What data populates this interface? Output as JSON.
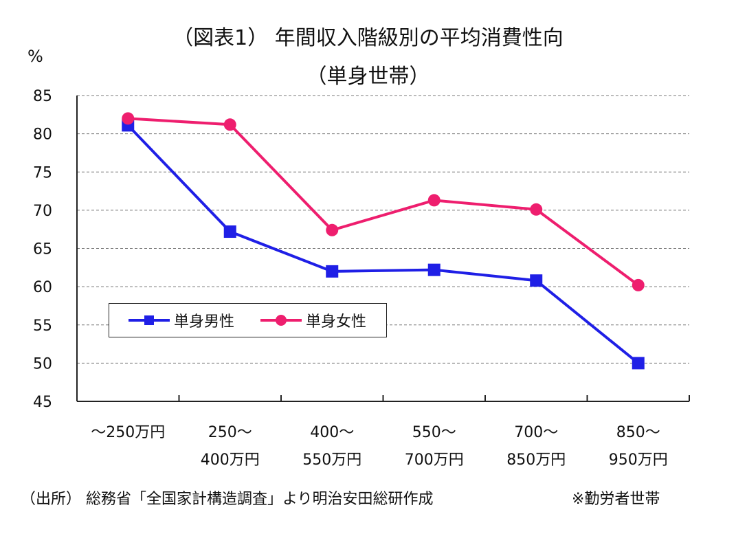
{
  "title": {
    "line1": "（図表1） 年間収入階級別の平均消費性向",
    "line2": "（単身世帯）"
  },
  "unit_label": "%",
  "footer": {
    "source": "（出所） 総務省「全国家計構造調査」より明治安田総研作成",
    "note": "※勤労者世帯"
  },
  "colors": {
    "male": "#1f1fe6",
    "female": "#ee1e6e",
    "axis": "#222222",
    "grid": "#777777"
  },
  "chart_data": {
    "type": "line",
    "title": "（図表1） 年間収入階級別の平均消費性向（単身世帯）",
    "ylabel": "%",
    "xlabel": "",
    "ylim": [
      45,
      85
    ],
    "yticks": [
      45,
      50,
      55,
      60,
      65,
      70,
      75,
      80,
      85
    ],
    "grid": "horizontal dashed",
    "legend_position": "lower-left",
    "categories": [
      [
        "～250万円"
      ],
      [
        "250～",
        "400万円"
      ],
      [
        "400～",
        "550万円"
      ],
      [
        "550～",
        "700万円"
      ],
      [
        "700～",
        "850万円"
      ],
      [
        "850～",
        "950万円"
      ]
    ],
    "series": [
      {
        "name": "単身男性",
        "marker": "square",
        "color": "#1f1fe6",
        "values": [
          81.1,
          67.2,
          62.0,
          62.2,
          60.8,
          50.0
        ]
      },
      {
        "name": "単身女性",
        "marker": "circle",
        "color": "#ee1e6e",
        "values": [
          82.0,
          81.2,
          67.4,
          71.3,
          70.1,
          60.2
        ]
      }
    ]
  }
}
